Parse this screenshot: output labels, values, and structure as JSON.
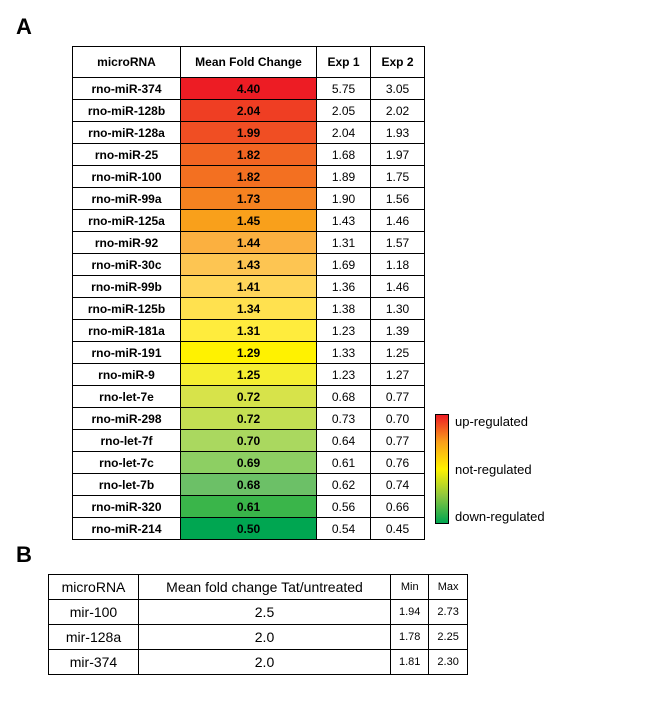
{
  "panelA": {
    "label": "A",
    "headers": {
      "microRNA": "microRNA",
      "mfc": "Mean Fold Change",
      "exp1": "Exp 1",
      "exp2": "Exp 2"
    },
    "rows": [
      {
        "name": "rno-miR-374",
        "mfc": "4.40",
        "exp1": "5.75",
        "exp2": "3.05",
        "color": "#ed1c24"
      },
      {
        "name": "rno-miR-128b",
        "mfc": "2.04",
        "exp1": "2.05",
        "exp2": "2.02",
        "color": "#ef3e23"
      },
      {
        "name": "rno-miR-128a",
        "mfc": "1.99",
        "exp1": "2.04",
        "exp2": "1.93",
        "color": "#f04e23"
      },
      {
        "name": "rno-miR-25",
        "mfc": "1.82",
        "exp1": "1.68",
        "exp2": "1.97",
        "color": "#f26522"
      },
      {
        "name": "rno-miR-100",
        "mfc": "1.82",
        "exp1": "1.89",
        "exp2": "1.75",
        "color": "#f37021"
      },
      {
        "name": "rno-miR-99a",
        "mfc": "1.73",
        "exp1": "1.90",
        "exp2": "1.56",
        "color": "#f58220"
      },
      {
        "name": "rno-miR-125a",
        "mfc": "1.45",
        "exp1": "1.43",
        "exp2": "1.46",
        "color": "#f9a01b"
      },
      {
        "name": "rno-miR-92",
        "mfc": "1.44",
        "exp1": "1.31",
        "exp2": "1.57",
        "color": "#fbb040"
      },
      {
        "name": "rno-miR-30c",
        "mfc": "1.43",
        "exp1": "1.69",
        "exp2": "1.18",
        "color": "#fdc552"
      },
      {
        "name": "rno-miR-99b",
        "mfc": "1.41",
        "exp1": "1.36",
        "exp2": "1.46",
        "color": "#ffd65a"
      },
      {
        "name": "rno-miR-125b",
        "mfc": "1.34",
        "exp1": "1.38",
        "exp2": "1.30",
        "color": "#ffe14f"
      },
      {
        "name": "rno-miR-181a",
        "mfc": "1.31",
        "exp1": "1.23",
        "exp2": "1.39",
        "color": "#ffec3d"
      },
      {
        "name": "rno-miR-191",
        "mfc": "1.29",
        "exp1": "1.33",
        "exp2": "1.25",
        "color": "#fff200"
      },
      {
        "name": "rno-miR-9",
        "mfc": "1.25",
        "exp1": "1.23",
        "exp2": "1.27",
        "color": "#f5ee31"
      },
      {
        "name": "rno-let-7e",
        "mfc": "0.72",
        "exp1": "0.68",
        "exp2": "0.77",
        "color": "#d7e34a"
      },
      {
        "name": "rno-miR-298",
        "mfc": "0.72",
        "exp1": "0.73",
        "exp2": "0.70",
        "color": "#c4df53"
      },
      {
        "name": "rno-let-7f",
        "mfc": "0.70",
        "exp1": "0.64",
        "exp2": "0.77",
        "color": "#aad85f"
      },
      {
        "name": "rno-let-7c",
        "mfc": "0.69",
        "exp1": "0.61",
        "exp2": "0.76",
        "color": "#8dcf63"
      },
      {
        "name": "rno-let-7b",
        "mfc": "0.68",
        "exp1": "0.62",
        "exp2": "0.74",
        "color": "#6cc067"
      },
      {
        "name": "rno-miR-320",
        "mfc": "0.61",
        "exp1": "0.56",
        "exp2": "0.66",
        "color": "#3ab54a"
      },
      {
        "name": "rno-miR-214",
        "mfc": "0.50",
        "exp1": "0.54",
        "exp2": "0.45",
        "color": "#00a651"
      }
    ]
  },
  "legend": {
    "gradient_stops": [
      "#ed1c24",
      "#f9a01b",
      "#fff200",
      "#8dc63f",
      "#00a651"
    ],
    "labels": {
      "up": "up-regulated",
      "not": "not-regulated",
      "down": "down-regulated"
    }
  },
  "panelB": {
    "label": "B",
    "headers": {
      "microRNA": "microRNA",
      "mfc": "Mean fold change Tat/untreated",
      "min": "Min",
      "max": "Max"
    },
    "rows": [
      {
        "name": "mir-100",
        "mfc": "2.5",
        "min": "1.94",
        "max": "2.73"
      },
      {
        "name": "mir-128a",
        "mfc": "2.0",
        "min": "1.78",
        "max": "2.25"
      },
      {
        "name": "mir-374",
        "mfc": "2.0",
        "min": "1.81",
        "max": "2.30"
      }
    ]
  }
}
